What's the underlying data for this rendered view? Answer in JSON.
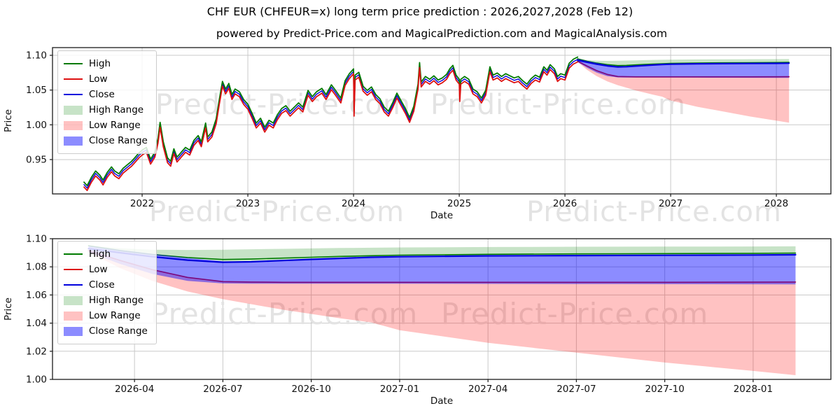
{
  "title": "CHF EUR (CHFEUR=x) long term price prediction : 2026,2027,2028 (Feb 12)",
  "subtitle": "powered by Predict-Price.com and MagicalPrediction.com and MagicalAnalysis.com",
  "watermark": {
    "text": "Predict-Price.com"
  },
  "legend": {
    "items": [
      {
        "label": "High",
        "swatch": "line",
        "color_key": "high"
      },
      {
        "label": "Low",
        "swatch": "line",
        "color_key": "low"
      },
      {
        "label": "Close",
        "swatch": "line",
        "color_key": "close"
      },
      {
        "label": "High Range",
        "swatch": "patch",
        "color_key": "high_range"
      },
      {
        "label": "Low Range",
        "swatch": "patch",
        "color_key": "low_range"
      },
      {
        "label": "Close Range",
        "swatch": "patch",
        "color_key": "close_range"
      }
    ]
  },
  "colors": {
    "high": "#007a00",
    "low": "#dd1111",
    "close": "#0000dd",
    "high_range": "rgba(0,128,0,0.22)",
    "low_range": "rgba(255,0,0,0.24)",
    "close_range": "rgba(0,0,255,0.45)",
    "grid": "#c9c9c9",
    "spine": "#1a1a1a",
    "tick_text": "#111111",
    "watermark": "#e3e3e3"
  },
  "chart_data": {
    "type": "line",
    "top_chart": {
      "xlabel": "Date",
      "ylabel": "Price",
      "xlim": [
        2021.152,
        2028.516
      ],
      "ylim": [
        0.9006,
        1.1111
      ],
      "x_ticks": [
        {
          "t": 2022,
          "label": "2022"
        },
        {
          "t": 2023,
          "label": "2023"
        },
        {
          "t": 2024,
          "label": "2024"
        },
        {
          "t": 2025,
          "label": "2025"
        },
        {
          "t": 2026,
          "label": "2026"
        },
        {
          "t": 2027,
          "label": "2027"
        },
        {
          "t": 2028,
          "label": "2028"
        }
      ],
      "y_ticks": [
        {
          "v": 0.95,
          "label": "0.95"
        },
        {
          "v": 1.0,
          "label": "1.00"
        },
        {
          "v": 1.05,
          "label": "1.05"
        },
        {
          "v": 1.1,
          "label": "1.10"
        }
      ]
    },
    "bottom_chart": {
      "xlabel": "Date",
      "ylabel": "Price",
      "xlim": [
        2026.018,
        2028.22
      ],
      "ylim": [
        1.0,
        1.1
      ],
      "x_ticks": [
        {
          "t": 2026.25,
          "label": "2026-04"
        },
        {
          "t": 2026.5,
          "label": "2026-07"
        },
        {
          "t": 2026.75,
          "label": "2026-10"
        },
        {
          "t": 2027.0,
          "label": "2027-01"
        },
        {
          "t": 2027.25,
          "label": "2027-04"
        },
        {
          "t": 2027.5,
          "label": "2027-07"
        },
        {
          "t": 2027.75,
          "label": "2027-10"
        },
        {
          "t": 2028.0,
          "label": "2028-01"
        }
      ],
      "y_ticks": [
        {
          "v": 1.0,
          "label": "1.00"
        },
        {
          "v": 1.02,
          "label": "1.02"
        },
        {
          "v": 1.04,
          "label": "1.04"
        },
        {
          "v": 1.06,
          "label": "1.06"
        },
        {
          "v": 1.08,
          "label": "1.08"
        },
        {
          "v": 1.1,
          "label": "1.10"
        }
      ]
    },
    "history": {
      "high_offset": 0.0035,
      "low_offset": 0.0035,
      "t": [
        2021.45,
        2021.48,
        2021.52,
        2021.56,
        2021.6,
        2021.63,
        2021.67,
        2021.71,
        2021.74,
        2021.78,
        2021.82,
        2021.86,
        2021.9,
        2021.93,
        2021.97,
        2022.0,
        2022.04,
        2022.08,
        2022.12,
        2022.15,
        2022.17,
        2022.2,
        2022.24,
        2022.27,
        2022.3,
        2022.33,
        2022.37,
        2022.41,
        2022.45,
        2022.49,
        2022.53,
        2022.56,
        2022.6,
        2022.62,
        2022.66,
        2022.7,
        2022.73,
        2022.76,
        2022.79,
        2022.82,
        2022.85,
        2022.88,
        2022.92,
        2022.96,
        2023.0,
        2023.04,
        2023.08,
        2023.12,
        2023.16,
        2023.2,
        2023.24,
        2023.28,
        2023.32,
        2023.36,
        2023.4,
        2023.44,
        2023.48,
        2023.52,
        2023.57,
        2023.61,
        2023.65,
        2023.7,
        2023.74,
        2023.79,
        2023.83,
        2023.88,
        2023.92,
        2023.96,
        2024.0,
        2024.005,
        2024.015,
        2024.05,
        2024.09,
        2024.13,
        2024.17,
        2024.21,
        2024.25,
        2024.29,
        2024.33,
        2024.37,
        2024.41,
        2024.45,
        2024.49,
        2024.53,
        2024.57,
        2024.61,
        2024.625,
        2024.64,
        2024.68,
        2024.72,
        2024.76,
        2024.8,
        2024.84,
        2024.88,
        2024.91,
        2024.94,
        2024.97,
        2025.0,
        2025.005,
        2025.015,
        2025.05,
        2025.09,
        2025.13,
        2025.17,
        2025.21,
        2025.25,
        2025.29,
        2025.32,
        2025.36,
        2025.4,
        2025.44,
        2025.48,
        2025.52,
        2025.56,
        2025.6,
        2025.64,
        2025.68,
        2025.72,
        2025.76,
        2025.8,
        2025.83,
        2025.86,
        2025.9,
        2025.93,
        2025.96,
        2026.0,
        2026.04,
        2026.08,
        2026.12
      ],
      "close": [
        0.914,
        0.909,
        0.921,
        0.93,
        0.924,
        0.917,
        0.928,
        0.936,
        0.93,
        0.926,
        0.934,
        0.939,
        0.944,
        0.949,
        0.956,
        0.96,
        0.964,
        0.947,
        0.957,
        0.977,
        1.0,
        0.972,
        0.949,
        0.944,
        0.962,
        0.95,
        0.957,
        0.964,
        0.96,
        0.974,
        0.981,
        0.972,
        0.999,
        0.979,
        0.986,
        1.005,
        1.033,
        1.059,
        1.048,
        1.056,
        1.04,
        1.048,
        1.044,
        1.033,
        1.026,
        1.013,
        0.999,
        1.006,
        0.993,
        1.003,
        0.999,
        1.011,
        1.02,
        1.024,
        1.016,
        1.022,
        1.028,
        1.022,
        1.046,
        1.037,
        1.044,
        1.049,
        1.04,
        1.054,
        1.046,
        1.035,
        1.06,
        1.07,
        1.077,
        1.016,
        1.068,
        1.072,
        1.052,
        1.046,
        1.051,
        1.04,
        1.034,
        1.022,
        1.016,
        1.028,
        1.042,
        1.031,
        1.02,
        1.007,
        1.023,
        1.055,
        1.086,
        1.058,
        1.066,
        1.062,
        1.067,
        1.061,
        1.064,
        1.069,
        1.077,
        1.082,
        1.068,
        1.062,
        1.037,
        1.062,
        1.066,
        1.062,
        1.048,
        1.044,
        1.035,
        1.046,
        1.08,
        1.068,
        1.071,
        1.066,
        1.07,
        1.067,
        1.064,
        1.066,
        1.06,
        1.055,
        1.063,
        1.068,
        1.065,
        1.08,
        1.075,
        1.083,
        1.077,
        1.066,
        1.07,
        1.068,
        1.085,
        1.091,
        1.094
      ]
    },
    "prediction": {
      "t": [
        2026.12,
        2026.21,
        2026.3,
        2026.4,
        2026.5,
        2026.58,
        2026.67,
        2026.75,
        2026.83,
        2026.92,
        2027.0,
        2027.25,
        2027.5,
        2027.75,
        2028.0,
        2028.12
      ],
      "close": [
        1.093,
        1.09,
        1.0872,
        1.0848,
        1.0833,
        1.0836,
        1.0845,
        1.0853,
        1.086,
        1.0868,
        1.0872,
        1.0878,
        1.088,
        1.0882,
        1.0884,
        1.0886
      ],
      "close_upper": [
        1.095,
        1.092,
        1.0893,
        1.0863,
        1.084,
        1.0838,
        1.0845,
        1.0853,
        1.086,
        1.0868,
        1.0872,
        1.0878,
        1.088,
        1.0882,
        1.0884,
        1.0886
      ],
      "close_lower": [
        1.0905,
        1.082,
        1.075,
        1.07,
        1.0682,
        1.068,
        1.068,
        1.068,
        1.068,
        1.068,
        1.068,
        1.0679,
        1.0678,
        1.0677,
        1.0676,
        1.0675
      ],
      "high": [
        1.095,
        1.0915,
        1.0888,
        1.0866,
        1.0852,
        1.0855,
        1.0862,
        1.0868,
        1.0874,
        1.0879,
        1.0883,
        1.0889,
        1.0892,
        1.0894,
        1.0896,
        1.0898
      ],
      "high_upper": [
        1.095,
        1.0932,
        1.0922,
        1.092,
        1.0922,
        1.0925,
        1.0928,
        1.0931,
        1.0934,
        1.0936,
        1.0938,
        1.0941,
        1.0943,
        1.0944,
        1.0945,
        1.0946
      ],
      "low": [
        1.0915,
        1.0845,
        1.078,
        1.0725,
        1.0695,
        1.0692,
        1.069,
        1.069,
        1.069,
        1.069,
        1.069,
        1.069,
        1.069,
        1.069,
        1.0691,
        1.0692
      ],
      "low_lower": [
        1.0905,
        1.079,
        1.07,
        1.0625,
        1.057,
        1.0535,
        1.0495,
        1.0465,
        1.0435,
        1.0405,
        1.035,
        1.026,
        1.019,
        1.012,
        1.006,
        1.003
      ]
    },
    "watermark_positions": [
      {
        "x": 222,
        "y": 163,
        "size": 40
      },
      {
        "x": 615,
        "y": 163,
        "size": 40
      },
      {
        "x": 213,
        "y": 316,
        "size": 40
      },
      {
        "x": 752,
        "y": 316,
        "size": 40
      },
      {
        "x": 215,
        "y": 463,
        "size": 42
      },
      {
        "x": 630,
        "y": 463,
        "size": 42
      }
    ]
  }
}
